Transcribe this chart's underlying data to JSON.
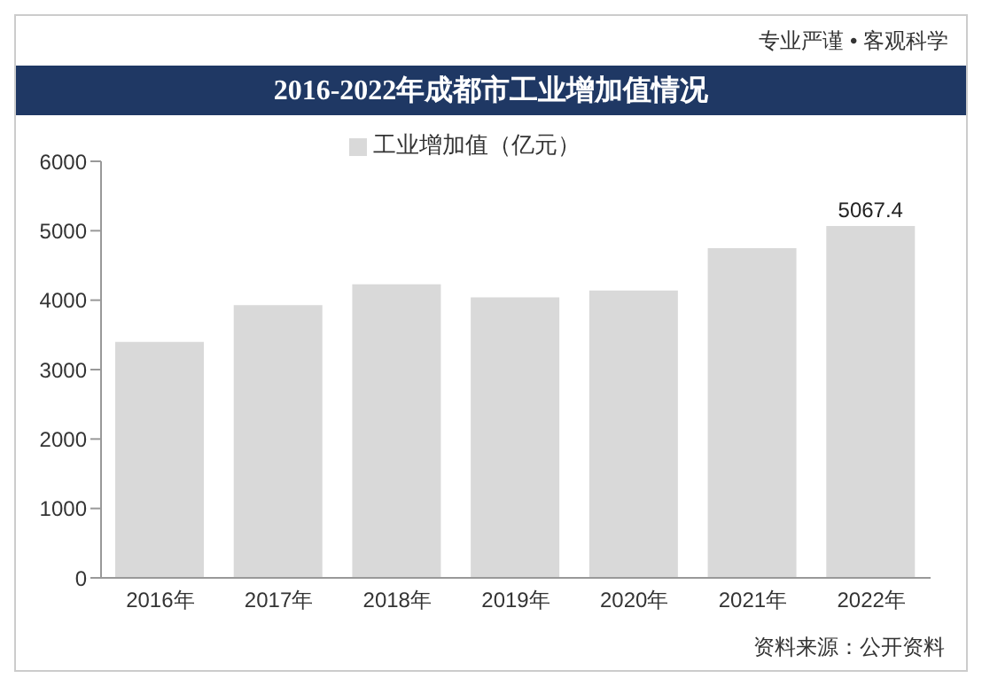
{
  "chart_data": {
    "type": "bar",
    "title": "2016-2022年成都市工业增加值情况",
    "categories": [
      "2016年",
      "2017年",
      "2018年",
      "2019年",
      "2020年",
      "2021年",
      "2022年"
    ],
    "series": [
      {
        "name": "工业增加值（亿元）",
        "color": "#d9d9d9",
        "values": [
          3400,
          3930,
          4230,
          4040,
          4140,
          4750,
          5067.4
        ],
        "value_labels": [
          null,
          null,
          null,
          null,
          null,
          null,
          "5067.4"
        ]
      }
    ],
    "ylim": [
      0,
      6000
    ],
    "yticks": [
      0,
      1000,
      2000,
      3000,
      4000,
      5000,
      6000
    ],
    "legend": "top",
    "annotations": [
      "专业严谨 • 客观科学",
      "资料来源：公开资料"
    ]
  }
}
